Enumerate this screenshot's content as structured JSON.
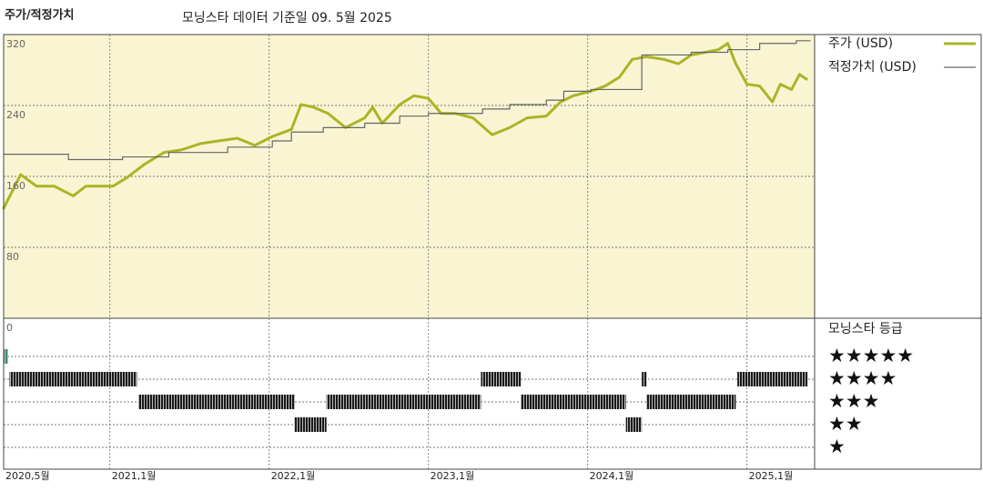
{
  "chart_data": [
    {
      "type": "line",
      "title": "주가/적정가치",
      "subtitle": "모닝스타 데이터 기준일 09. 5월 2025",
      "background": "#f9f5d3",
      "xlim": [
        2020.333,
        2025.425
      ],
      "xticks": [
        {
          "value": 2020.333,
          "label": "2020,5월"
        },
        {
          "value": 2021,
          "label": "2021,1월"
        },
        {
          "value": 2022,
          "label": "2022,1월"
        },
        {
          "value": 2023,
          "label": "2023,1월"
        },
        {
          "value": 2024,
          "label": "2024,1월"
        },
        {
          "value": 2025,
          "label": "2025,1월"
        }
      ],
      "ylim": [
        0,
        320
      ],
      "yticks": [
        0,
        80,
        160,
        240,
        320
      ],
      "grid": true,
      "series": [
        {
          "name": "주가 (USD)",
          "color": "#aab526",
          "width": 3,
          "x": [
            2020.33,
            2020.44,
            2020.54,
            2020.65,
            2020.77,
            2020.85,
            2020.94,
            2021.02,
            2021.11,
            2021.22,
            2021.34,
            2021.45,
            2021.57,
            2021.68,
            2021.8,
            2021.91,
            2022.02,
            2022.14,
            2022.2,
            2022.28,
            2022.37,
            2022.48,
            2022.6,
            2022.65,
            2022.71,
            2022.82,
            2022.91,
            2023.0,
            2023.08,
            2023.17,
            2023.28,
            2023.4,
            2023.51,
            2023.62,
            2023.74,
            2023.83,
            2023.91,
            2024.02,
            2024.11,
            2024.2,
            2024.28,
            2024.37,
            2024.48,
            2024.57,
            2024.65,
            2024.74,
            2024.82,
            2024.88,
            2024.93,
            2025.0,
            2025.08,
            2025.16,
            2025.21,
            2025.28,
            2025.33,
            2025.38
          ],
          "values": [
            123,
            162,
            149,
            149,
            138,
            149,
            149,
            149,
            159,
            174,
            187,
            190,
            197,
            200,
            203,
            195,
            205,
            213,
            241,
            238,
            231,
            215,
            226,
            238,
            220,
            241,
            251,
            248,
            231,
            231,
            226,
            207,
            215,
            226,
            228,
            244,
            251,
            256,
            262,
            272,
            292,
            295,
            292,
            287,
            297,
            300,
            303,
            310,
            287,
            264,
            262,
            244,
            264,
            258,
            275,
            269
          ]
        },
        {
          "name": "적정가치 (USD)",
          "color": "#666666",
          "width": 1.2,
          "drawstyle": "steps-post",
          "x": [
            2020.33,
            2020.74,
            2021.08,
            2021.37,
            2021.74,
            2022.02,
            2022.14,
            2022.34,
            2022.6,
            2022.82,
            2023.0,
            2023.34,
            2023.51,
            2023.74,
            2023.85,
            2024.02,
            2024.34,
            2024.65,
            2024.88,
            2025.08,
            2025.31,
            2025.4
          ],
          "values": [
            185,
            179,
            182,
            187,
            193,
            200,
            210,
            215,
            220,
            228,
            231,
            236,
            241,
            246,
            256,
            258,
            297,
            300,
            303,
            310,
            313,
            313
          ]
        }
      ]
    },
    {
      "type": "range",
      "title": "모닝스타 등급",
      "levels": [
        {
          "value": 5,
          "label": "★★★★★"
        },
        {
          "value": 4,
          "label": "★★★★"
        },
        {
          "value": 3,
          "label": "★★★"
        },
        {
          "value": 2,
          "label": "★★"
        },
        {
          "value": 1,
          "label": "★"
        }
      ],
      "segments": [
        {
          "start": 2020.33,
          "end": 2020.36,
          "value": 5,
          "color": "#3f8f74"
        },
        {
          "start": 2020.37,
          "end": 2021.17,
          "value": 4,
          "color": "#1a1a1a"
        },
        {
          "start": 2021.18,
          "end": 2022.16,
          "value": 3,
          "color": "#1a1a1a"
        },
        {
          "start": 2022.16,
          "end": 2022.36,
          "value": 2,
          "color": "#1a1a1a"
        },
        {
          "start": 2022.36,
          "end": 2023.33,
          "value": 3,
          "color": "#1a1a1a"
        },
        {
          "start": 2023.33,
          "end": 2023.58,
          "value": 4,
          "color": "#1a1a1a"
        },
        {
          "start": 2023.58,
          "end": 2024.24,
          "value": 3,
          "color": "#1a1a1a"
        },
        {
          "start": 2024.24,
          "end": 2024.34,
          "value": 2,
          "color": "#1a1a1a"
        },
        {
          "start": 2024.34,
          "end": 2024.37,
          "value": 4,
          "color": "#1a1a1a"
        },
        {
          "start": 2024.37,
          "end": 2024.93,
          "value": 3,
          "color": "#1a1a1a"
        },
        {
          "start": 2024.94,
          "end": 2025.38,
          "value": 4,
          "color": "#1a1a1a"
        }
      ]
    }
  ]
}
